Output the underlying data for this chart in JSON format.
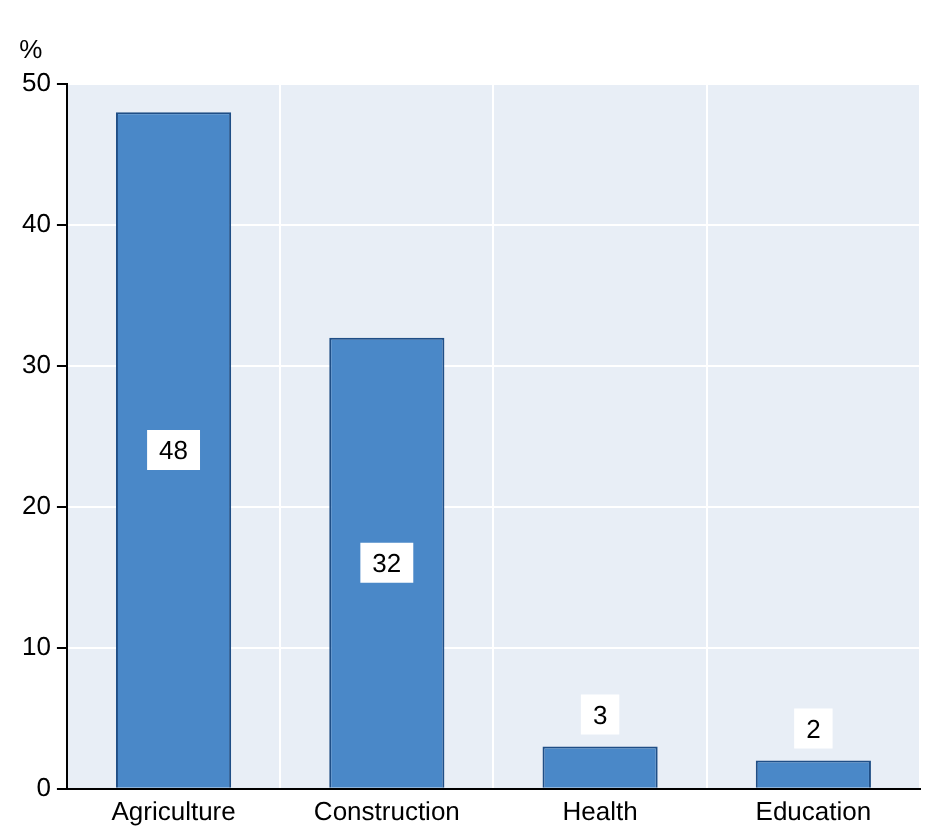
{
  "chart_data": {
    "type": "bar",
    "ylabel": "%",
    "categories": [
      "Agriculture",
      "Construction",
      "Health",
      "Education"
    ],
    "values": [
      48,
      32,
      3,
      2
    ],
    "color": "#4a88c8",
    "ylim": [
      0,
      50
    ],
    "yticks": [
      0,
      10,
      20,
      30,
      40,
      50
    ],
    "grid": true,
    "data_labels": true,
    "legend": false
  }
}
